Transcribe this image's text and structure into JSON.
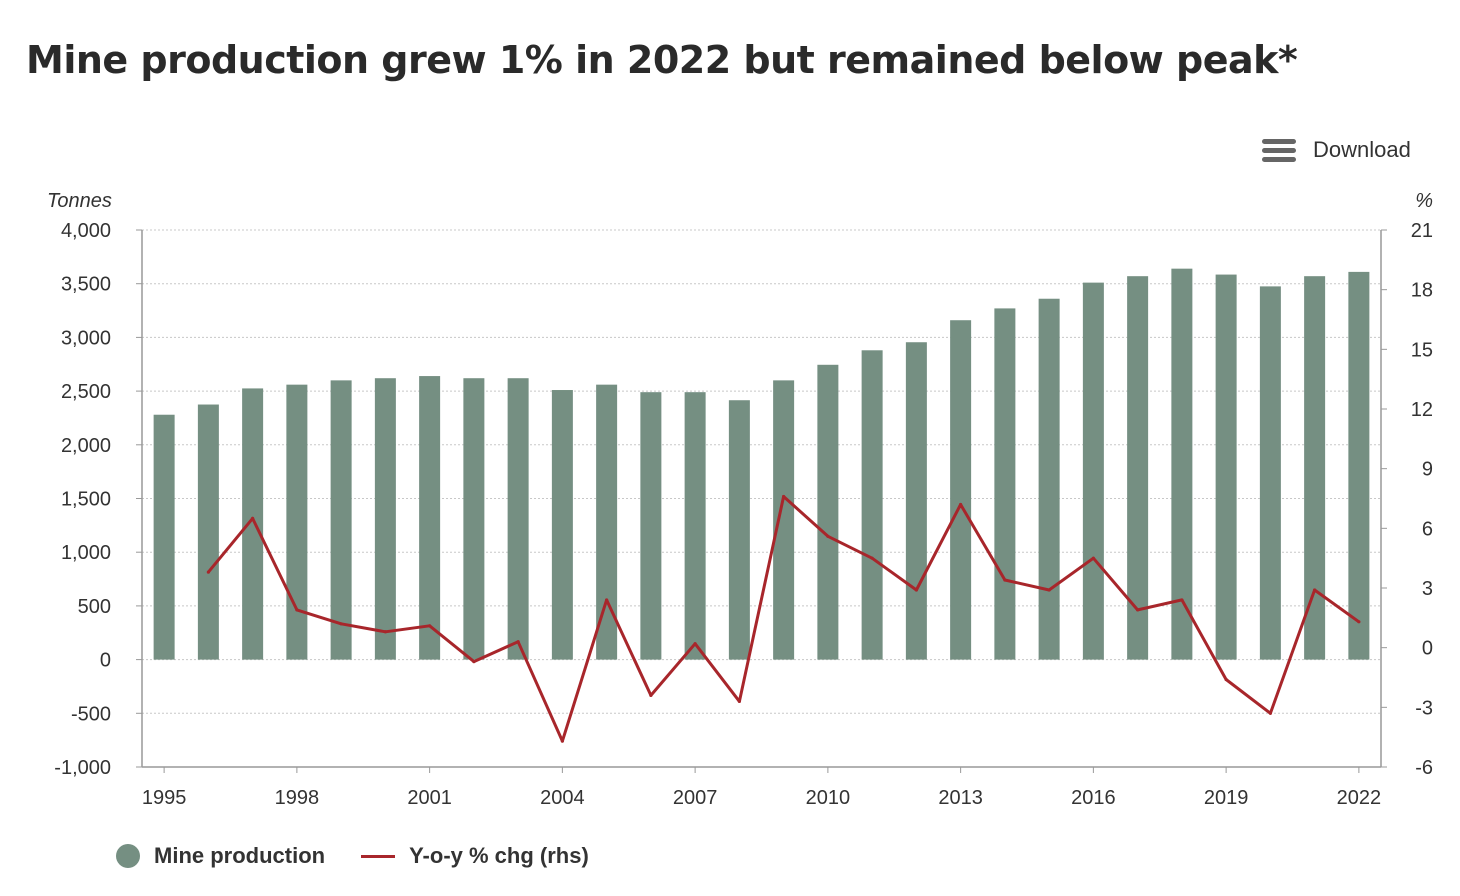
{
  "title": "Mine production grew 1% in 2022 but remained below peak*",
  "download_label": "Download",
  "colors": {
    "bar": "#758f82",
    "line": "#a8262b",
    "grid": "#c8c8c8",
    "axis": "#999999"
  },
  "chart_data": {
    "type": "bar",
    "left_axis_label": "Tonnes",
    "right_axis_label": "%",
    "y_left_lim": [
      -1000,
      4000
    ],
    "y_left_ticks": [
      -1000,
      -500,
      0,
      500,
      1000,
      1500,
      2000,
      2500,
      3000,
      3500,
      4000
    ],
    "y_left_tick_labels": [
      "-1,000",
      "-500",
      "0",
      "500",
      "1,000",
      "1,500",
      "2,000",
      "2,500",
      "3,000",
      "3,500",
      "4,000"
    ],
    "y_right_lim": [
      -6,
      21
    ],
    "y_right_ticks": [
      -6,
      -3,
      0,
      3,
      6,
      9,
      12,
      15,
      18,
      21
    ],
    "y_right_tick_labels": [
      "-6",
      "-3",
      "0",
      "3",
      "6",
      "9",
      "12",
      "15",
      "18",
      "21"
    ],
    "x_tick_labels": [
      "1995",
      "1998",
      "2001",
      "2004",
      "2007",
      "2010",
      "2013",
      "2016",
      "2019",
      "2022"
    ],
    "grid": true,
    "legend_position": "bottom-left",
    "categories": [
      "1995",
      "1996",
      "1997",
      "1998",
      "1999",
      "2000",
      "2001",
      "2002",
      "2003",
      "2004",
      "2005",
      "2006",
      "2007",
      "2008",
      "2009",
      "2010",
      "2011",
      "2012",
      "2013",
      "2014",
      "2015",
      "2016",
      "2017",
      "2018",
      "2019",
      "2020",
      "2021",
      "2022"
    ],
    "series": [
      {
        "name": "Mine production",
        "type": "bar",
        "axis": "left",
        "values": [
          2280,
          2375,
          2525,
          2560,
          2600,
          2620,
          2640,
          2620,
          2620,
          2510,
          2560,
          2490,
          2490,
          2415,
          2600,
          2745,
          2880,
          2955,
          3160,
          3270,
          3360,
          3510,
          3570,
          3640,
          3585,
          3475,
          3570,
          3610
        ]
      },
      {
        "name": "Y-o-y % chg (rhs)",
        "type": "line",
        "axis": "right",
        "values": [
          null,
          3.8,
          6.5,
          1.9,
          1.2,
          0.8,
          1.1,
          -0.7,
          0.3,
          -4.7,
          2.4,
          -2.4,
          0.2,
          -2.7,
          7.6,
          5.6,
          4.5,
          2.9,
          7.2,
          3.4,
          2.9,
          4.5,
          1.9,
          2.4,
          -1.6,
          -3.3,
          2.9,
          1.3
        ]
      }
    ]
  }
}
